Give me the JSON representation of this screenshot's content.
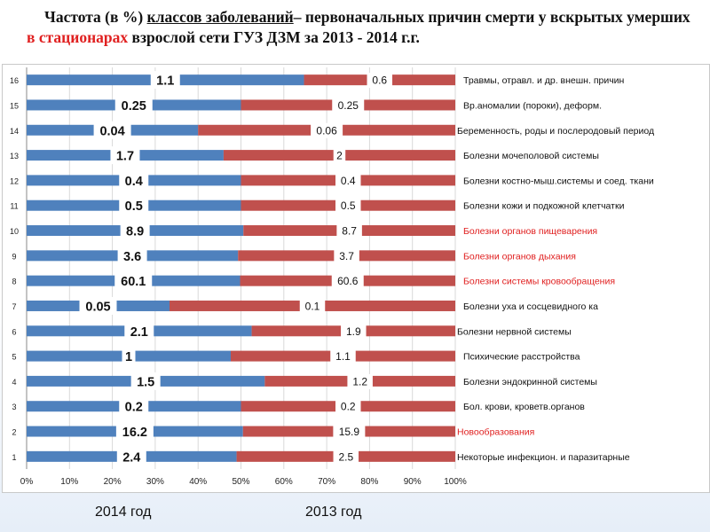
{
  "title": {
    "part1": "Частота (в %) ",
    "part2": "классов заболеваний",
    "part3": "– первоначальных причин смерти у вскрытых умерших ",
    "part4": "в стационарах",
    "part5": " взрослой сети ГУЗ ДЗМ  за 2013 - 2014 г.г."
  },
  "colors": {
    "series2014": "#4f81bd",
    "series2013": "#c0504d",
    "highlight": "#e02020"
  },
  "chart_data": {
    "type": "bar",
    "orientation": "horizontal",
    "stacked": "percent",
    "xaxis_ticks": [
      "0%",
      "10%",
      "20%",
      "30%",
      "40%",
      "50%",
      "60%",
      "70%",
      "80%",
      "90%",
      "100%"
    ],
    "yaxis_ticks": [
      "1",
      "2",
      "3",
      "4",
      "5",
      "6",
      "7",
      "8",
      "9",
      "10",
      "11",
      "12",
      "13",
      "14",
      "15",
      "16"
    ],
    "categories": [
      "Некоторые инфекцион. и паразитарные",
      "Новообразования",
      "Бол. крови, кроветв.органов",
      "Болезни эндокринной системы",
      "Психические расстройства",
      "Болезни нервной системы",
      "Болезни уха и сосцевидного ка",
      "Болезни системы кровообращения",
      "Болезни органов дыхания",
      "Болезни органов пищеварения",
      "Болезни кожи и подкожной клетчатки",
      "Болезни костно-мыш.системы и соед. ткани",
      "Болезни мочеполовой системы",
      "Беременность, роды и послеродовый период",
      "Вр.аномалии (пороки), деформ.",
      "Травмы, отравл. и др. внешн. причин"
    ],
    "highlighted_categories": [
      2,
      8,
      9,
      10
    ],
    "series": [
      {
        "name": "2014 год",
        "labels": [
          "2.4",
          "16.2",
          "0.2",
          "1.5",
          "1",
          "2.1",
          "0.05",
          "60.1",
          "3.6",
          "8.9",
          "0.5",
          "0.4",
          "1.7",
          "0.04",
          "0.25",
          "1.1"
        ],
        "values": [
          2.4,
          16.2,
          0.2,
          1.5,
          1,
          2.1,
          0.05,
          60.1,
          3.6,
          8.9,
          0.5,
          0.4,
          1.7,
          0.04,
          0.25,
          1.1
        ]
      },
      {
        "name": "2013 год",
        "labels": [
          "2.5",
          "15.9",
          "0.2",
          "1.2",
          "1.1",
          "1.9",
          "0.1",
          "60.6",
          "3.7",
          "8.7",
          "0.5",
          "0.4",
          "2",
          "0.06",
          "0.25",
          "0.6"
        ],
        "values": [
          2.5,
          15.9,
          0.2,
          1.2,
          1.1,
          1.9,
          0.1,
          60.6,
          3.7,
          8.7,
          0.5,
          0.4,
          2,
          0.06,
          0.25,
          0.6
        ]
      }
    ],
    "xlim": [
      0,
      100
    ]
  },
  "footer": {
    "label2014": "2014 год",
    "label2013": "2013 год"
  }
}
